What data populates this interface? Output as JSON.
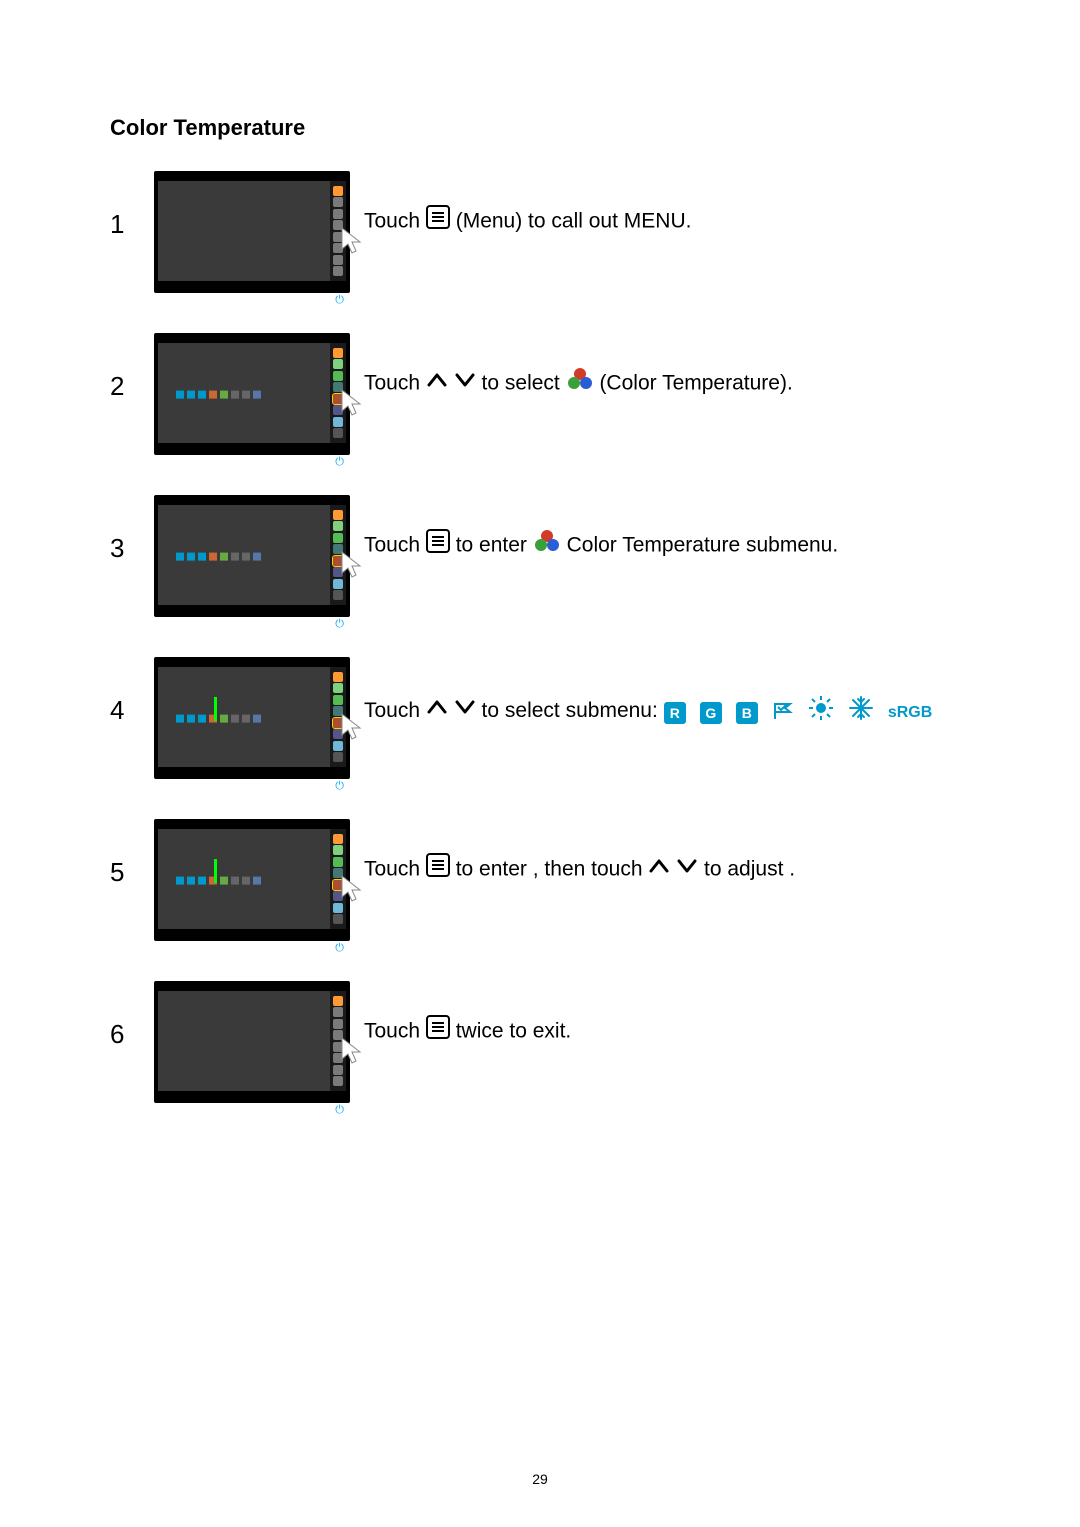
{
  "title": "Color Temperature",
  "page_number": "29",
  "steps": [
    {
      "n": "1",
      "parts": [
        {
          "t": "Touch "
        },
        {
          "icon": "menu"
        },
        {
          "t": " (Menu) to  call out MENU."
        }
      ],
      "show_submenu_row": false,
      "show_bar": false,
      "highlight": null,
      "gray_others": true
    },
    {
      "n": "2",
      "parts": [
        {
          "t": "Touch "
        },
        {
          "icon": "up"
        },
        {
          "t": " "
        },
        {
          "icon": "down"
        },
        {
          "t": " to select "
        },
        {
          "icon": "rgb3"
        },
        {
          "t": " (Color Temperature)."
        }
      ],
      "show_submenu_row": true,
      "show_bar": false,
      "highlight": 4
    },
    {
      "n": "3",
      "parts": [
        {
          "t": "Touch "
        },
        {
          "icon": "menu"
        },
        {
          "t": " to enter "
        },
        {
          "icon": "rgb3"
        },
        {
          "t": " Color  Temperature submenu."
        }
      ],
      "show_submenu_row": true,
      "show_bar": false,
      "highlight": 4
    },
    {
      "n": "4",
      "parts": [
        {
          "t": "Touch "
        },
        {
          "icon": "up"
        },
        {
          "t": " "
        },
        {
          "icon": "down"
        },
        {
          "t": " to select submenu:"
        }
      ],
      "submenu_icons": true,
      "show_submenu_row": true,
      "show_bar": true,
      "highlight": 4
    },
    {
      "n": "5",
      "parts": [
        {
          "t": "Touch "
        },
        {
          "icon": "menu"
        },
        {
          "t": "  to enter , then touch "
        },
        {
          "icon": "up"
        },
        {
          "t": " "
        },
        {
          "icon": "down"
        },
        {
          "t": " to  adjust ."
        }
      ],
      "show_submenu_row": true,
      "show_bar": true,
      "highlight": 4
    },
    {
      "n": "6",
      "parts": [
        {
          "t": "Touch "
        },
        {
          "icon": "menu"
        },
        {
          "t": "  twice to exit."
        }
      ],
      "show_submenu_row": false,
      "show_bar": false,
      "highlight": null,
      "gray_others": true
    }
  ],
  "sidebar_colors": [
    "#ff9933",
    "#7fd07f",
    "#55bb55",
    "#447777",
    "#a85030",
    "#555588",
    "#6fb8d8",
    "#555555"
  ],
  "sidebar_colors_gray": [
    "#ff9933",
    "#7a7a7a",
    "#7a7a7a",
    "#7a7a7a",
    "#7a7a7a",
    "#7a7a7a",
    "#7a7a7a",
    "#7a7a7a"
  ],
  "submenu_row_colors": [
    "#0099cc",
    "#0099cc",
    "#0099cc",
    "#cc6633",
    "#66aa44",
    "#666666",
    "#666666",
    "#5577aa"
  ],
  "submenu_icons": {
    "r": {
      "bg": "#0099cc",
      "label": "R"
    },
    "g": {
      "bg": "#0099cc",
      "label": "G"
    },
    "b": {
      "bg": "#0099cc",
      "label": "B"
    },
    "flag": {
      "color": "#0099cc"
    },
    "sun": {
      "color": "#0099cc"
    },
    "snow": {
      "color": "#0099cc"
    },
    "srgb": {
      "label": "sRGB"
    }
  }
}
